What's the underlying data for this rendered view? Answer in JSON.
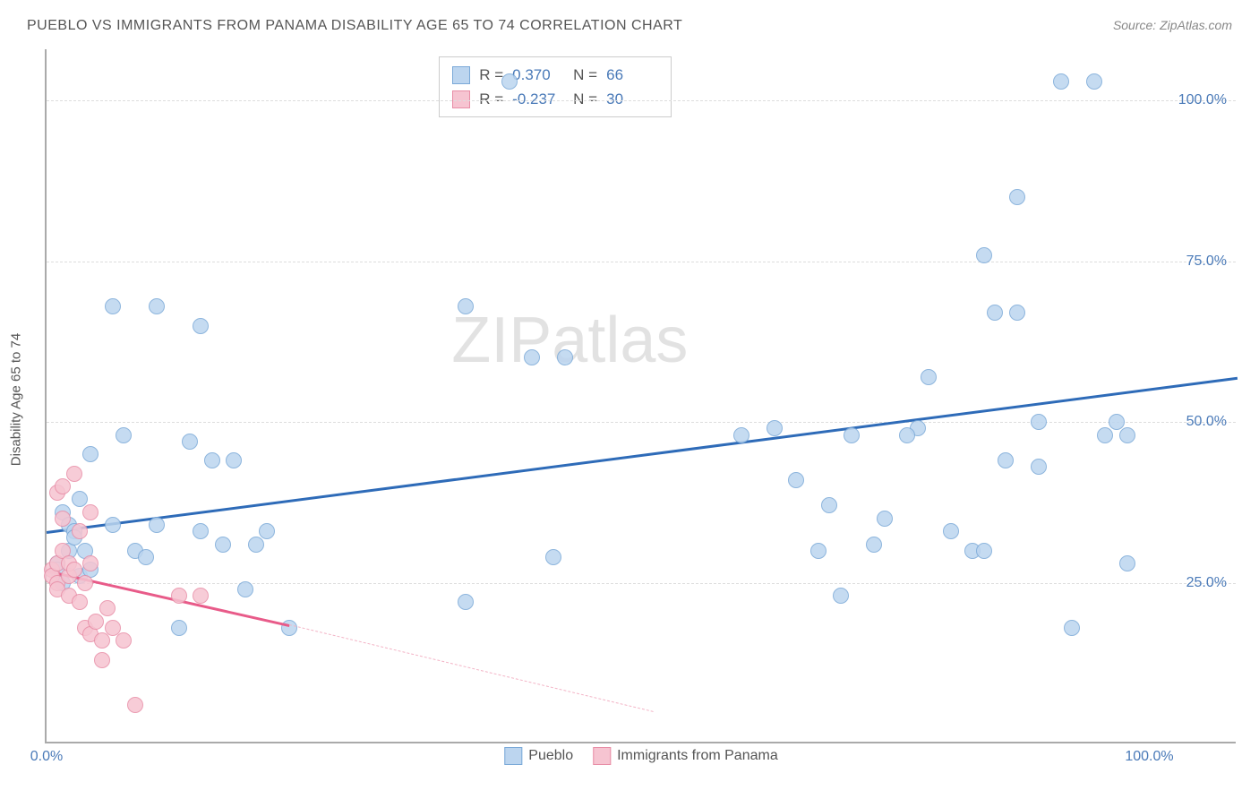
{
  "title": "PUEBLO VS IMMIGRANTS FROM PANAMA DISABILITY AGE 65 TO 74 CORRELATION CHART",
  "source": "Source: ZipAtlas.com",
  "ylabel": "Disability Age 65 to 74",
  "watermark": "ZIPatlas",
  "chart": {
    "type": "scatter",
    "xlim": [
      0,
      108
    ],
    "ylim": [
      0,
      108
    ],
    "xticks": [
      {
        "v": 0,
        "label": "0.0%"
      },
      {
        "v": 100,
        "label": "100.0%"
      }
    ],
    "yticks": [
      {
        "v": 25,
        "label": "25.0%"
      },
      {
        "v": 50,
        "label": "50.0%"
      },
      {
        "v": 75,
        "label": "75.0%"
      },
      {
        "v": 100,
        "label": "100.0%"
      }
    ],
    "grid_color": "#dddddd",
    "background_color": "#ffffff",
    "marker_radius": 9,
    "marker_stroke": 1.5,
    "series": [
      {
        "name": "Pueblo",
        "fill": "#bcd5ef",
        "stroke": "#7aa9d8",
        "stats": {
          "R": "0.370",
          "N": "66"
        },
        "trend": {
          "x1": 0,
          "y1": 33,
          "x2": 108,
          "y2": 57,
          "color": "#2e6bb8",
          "width": 3,
          "dash": false
        },
        "points": [
          [
            1,
            28
          ],
          [
            1,
            27
          ],
          [
            1.5,
            25
          ],
          [
            1.5,
            36
          ],
          [
            2,
            30
          ],
          [
            2,
            34
          ],
          [
            2.5,
            33
          ],
          [
            2.5,
            32
          ],
          [
            3,
            26
          ],
          [
            3,
            38
          ],
          [
            3.5,
            30
          ],
          [
            4,
            27
          ],
          [
            4,
            45
          ],
          [
            6,
            68
          ],
          [
            6,
            34
          ],
          [
            7,
            48
          ],
          [
            8,
            30
          ],
          [
            9,
            29
          ],
          [
            10,
            68
          ],
          [
            10,
            34
          ],
          [
            12,
            18
          ],
          [
            13,
            47
          ],
          [
            14,
            33
          ],
          [
            14,
            65
          ],
          [
            15,
            44
          ],
          [
            16,
            31
          ],
          [
            17,
            44
          ],
          [
            18,
            24
          ],
          [
            19,
            31
          ],
          [
            20,
            33
          ],
          [
            22,
            18
          ],
          [
            38,
            22
          ],
          [
            38,
            68
          ],
          [
            42,
            103
          ],
          [
            44,
            60
          ],
          [
            47,
            60
          ],
          [
            46,
            29
          ],
          [
            66,
            49
          ],
          [
            68,
            41
          ],
          [
            71,
            37
          ],
          [
            72,
            23
          ],
          [
            73,
            48
          ],
          [
            75,
            31
          ],
          [
            76,
            35
          ],
          [
            79,
            49
          ],
          [
            80,
            57
          ],
          [
            82,
            33
          ],
          [
            84,
            30
          ],
          [
            85,
            30
          ],
          [
            85,
            76
          ],
          [
            86,
            67
          ],
          [
            87,
            44
          ],
          [
            88,
            85
          ],
          [
            88,
            67
          ],
          [
            90,
            43
          ],
          [
            90,
            50
          ],
          [
            92,
            103
          ],
          [
            93,
            18
          ],
          [
            95,
            103
          ],
          [
            96,
            48
          ],
          [
            97,
            50
          ],
          [
            98,
            48
          ],
          [
            98,
            28
          ],
          [
            78,
            48
          ],
          [
            63,
            48
          ],
          [
            70,
            30
          ]
        ]
      },
      {
        "name": "Immigrants from Panama",
        "fill": "#f6c4d1",
        "stroke": "#e88da6",
        "stats": {
          "R": "-0.237",
          "N": "30"
        },
        "trend_solid": {
          "x1": 0,
          "y1": 27,
          "x2": 22,
          "y2": 18.5,
          "color": "#e85b89",
          "width": 3
        },
        "trend_dash": {
          "x1": 22,
          "y1": 18.5,
          "x2": 55,
          "y2": 5,
          "color": "#f3b4c6",
          "width": 1.5
        },
        "points": [
          [
            0.5,
            27
          ],
          [
            0.5,
            26
          ],
          [
            1,
            28
          ],
          [
            1,
            25
          ],
          [
            1,
            24
          ],
          [
            1,
            39
          ],
          [
            1.5,
            30
          ],
          [
            1.5,
            35
          ],
          [
            1.5,
            40
          ],
          [
            2,
            26
          ],
          [
            2,
            23
          ],
          [
            2,
            28
          ],
          [
            2.5,
            27
          ],
          [
            2.5,
            42
          ],
          [
            3,
            22
          ],
          [
            3,
            33
          ],
          [
            3.5,
            18
          ],
          [
            3.5,
            25
          ],
          [
            4,
            17
          ],
          [
            4,
            28
          ],
          [
            4.5,
            19
          ],
          [
            5,
            16
          ],
          [
            5,
            13
          ],
          [
            5.5,
            21
          ],
          [
            6,
            18
          ],
          [
            7,
            16
          ],
          [
            8,
            6
          ],
          [
            12,
            23
          ],
          [
            14,
            23
          ],
          [
            4,
            36
          ]
        ]
      }
    ]
  },
  "legend_labels": {
    "series1": "Pueblo",
    "series2": "Immigrants from Panama"
  },
  "stats_labels": {
    "R": "R =",
    "N": "N ="
  }
}
